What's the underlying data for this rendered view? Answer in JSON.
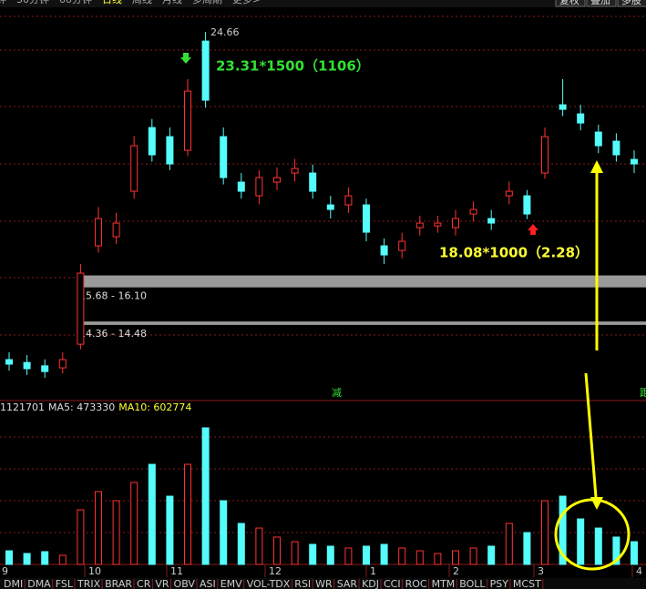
{
  "toolbar": {
    "items": [
      "钟",
      "30分钟",
      "60分钟",
      "日线",
      "周线",
      "月线",
      "多周期",
      "更多>"
    ],
    "active": 3,
    "right": [
      "复权",
      "叠加",
      "多股"
    ]
  },
  "chart_data": [
    {
      "type": "candlestick",
      "open": [
        13.14,
        13.04,
        12.92,
        12.85,
        13.68,
        17.14,
        17.46,
        19.06,
        21.3,
        20.98,
        20.5,
        24.34,
        20.98,
        19.38,
        18.9,
        19.38,
        19.7,
        19.7,
        18.58,
        18.58,
        18.58,
        17.14,
        16.98,
        17.78,
        17.84,
        17.78,
        18.26,
        18.1,
        18.9,
        18.9,
        19.7,
        22.1,
        21.78,
        21.14,
        20.82,
        20.18
      ],
      "close": [
        12.98,
        12.82,
        12.72,
        13.14,
        16.18,
        18.1,
        17.94,
        20.66,
        20.34,
        20.02,
        22.58,
        22.26,
        19.54,
        19.06,
        19.54,
        19.54,
        19.86,
        19.06,
        18.42,
        18.9,
        17.62,
        16.82,
        17.3,
        17.94,
        17.94,
        18.1,
        18.42,
        17.94,
        19.06,
        18.26,
        20.98,
        21.94,
        21.46,
        20.66,
        20.34,
        20.02
      ],
      "high": [
        13.4,
        13.3,
        13.15,
        13.4,
        16.5,
        18.5,
        18.3,
        21.0,
        21.6,
        21.3,
        23.0,
        24.66,
        21.3,
        19.7,
        19.8,
        19.9,
        20.2,
        20.0,
        18.9,
        19.2,
        18.8,
        17.4,
        17.6,
        18.2,
        18.2,
        18.4,
        18.7,
        18.4,
        19.4,
        19.1,
        21.3,
        23.0,
        22.1,
        21.4,
        21.1,
        20.5
      ],
      "low": [
        12.75,
        12.6,
        12.5,
        12.65,
        13.5,
        16.9,
        17.2,
        18.8,
        20.1,
        19.8,
        20.3,
        22.0,
        19.3,
        18.8,
        18.6,
        19.1,
        19.4,
        18.8,
        18.1,
        18.3,
        17.3,
        16.5,
        16.7,
        17.5,
        17.6,
        17.5,
        18.0,
        17.7,
        18.6,
        18.08,
        19.5,
        21.7,
        21.2,
        20.4,
        20.1,
        19.7
      ],
      "ylim": [
        12.02,
        25.4
      ],
      "up_color": "#ff3232",
      "down_color": "#54fcfc",
      "zones": [
        {
          "label": "15.68 - 16.10",
          "low": 15.68,
          "high": 16.1
        },
        {
          "label": "14.36 - 14.48",
          "low": 14.36,
          "high": 14.48
        }
      ],
      "annotations": {
        "peak": "24.66",
        "sell": "23.31*1500（1106）",
        "buy": "18.08*1000（2.28）",
        "marker_1": "减",
        "marker_2": "距"
      }
    },
    {
      "type": "volume",
      "header": {
        "volume": "1121701",
        "ma5": "MA5: 473330",
        "ma10": "MA10: 602774"
      },
      "values": [
        127000,
        102000,
        119000,
        85000,
        509000,
        679000,
        594000,
        764000,
        933000,
        636000,
        933000,
        1273000,
        594000,
        382000,
        339000,
        255000,
        212000,
        187000,
        170000,
        153000,
        170000,
        187000,
        153000,
        127000,
        102000,
        127000,
        153000,
        170000,
        382000,
        297000,
        594000,
        636000,
        424000,
        339000,
        255000,
        212000
      ],
      "ylim": [
        0,
        1400000
      ]
    }
  ],
  "months": [
    "9",
    "10",
    "11",
    "12",
    "1",
    "2",
    "3",
    "4"
  ],
  "tabs": [
    "DMI",
    "DMA",
    "FSL",
    "TRIX",
    "BRAR",
    "CR",
    "VR",
    "OBV",
    "ASI",
    "EMV",
    "VOL-TDX",
    "RSI",
    "WR",
    "SAR",
    "KDJ",
    "CCI",
    "ROC",
    "MTM",
    "BOLL",
    "PSY",
    "MCST"
  ]
}
